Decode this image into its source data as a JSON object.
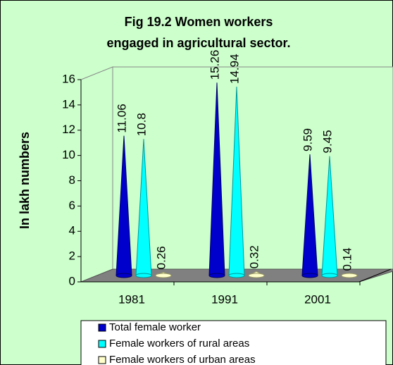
{
  "chart_data": {
    "type": "cone3d",
    "title": [
      "Fig 19.2  Women workers",
      "engaged in agricultural sector."
    ],
    "y_label": "In lakh numbers",
    "categories": [
      "1981",
      "1991",
      "2001"
    ],
    "series": [
      {
        "name": "Total female worker",
        "color": "#0000cc",
        "values": [
          11.06,
          15.26,
          9.59
        ]
      },
      {
        "name": "Female workers of rural areas",
        "color": "#00ffff",
        "values": [
          10.8,
          14.94,
          9.45
        ]
      },
      {
        "name": "Female workers of urban areas",
        "color": "#ffffcc",
        "values": [
          0.26,
          0.32,
          0.14
        ]
      }
    ],
    "ylim": [
      0,
      16
    ],
    "yticks": [
      0,
      2,
      4,
      6,
      8,
      10,
      12,
      14,
      16
    ]
  }
}
